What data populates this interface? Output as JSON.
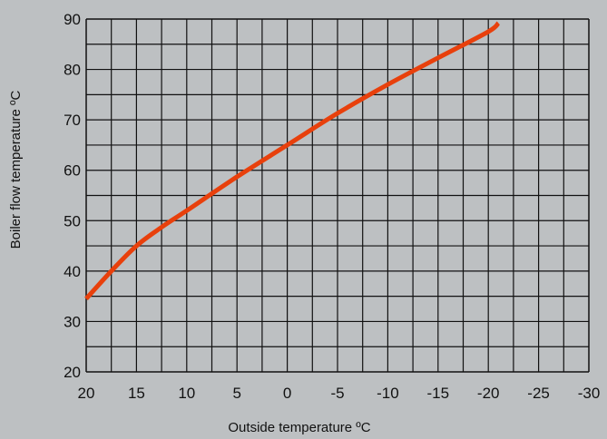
{
  "chart_data": {
    "type": "line",
    "title": "",
    "xlabel": "Outside temperature ºC",
    "ylabel": "Boiler flow temperature ºC",
    "xlim": [
      20,
      -30
    ],
    "ylim": [
      20,
      90
    ],
    "x_ticks": [
      "20",
      "15",
      "10",
      "5",
      "0",
      "-5",
      "-10",
      "-15",
      "-20",
      "-25",
      "-30"
    ],
    "y_ticks": [
      "90",
      "80",
      "70",
      "60",
      "50",
      "40",
      "30",
      "20"
    ],
    "grid": true,
    "series": [
      {
        "color": "#e8400c",
        "x": [
          20,
          17.5,
          15,
          12.5,
          10,
          5,
          0,
          -5,
          -10,
          -15,
          -20,
          -21
        ],
        "y": [
          34.5,
          40,
          45,
          48.7,
          52,
          58.7,
          65,
          71.3,
          77,
          82.3,
          87.5,
          89.2
        ]
      }
    ]
  }
}
